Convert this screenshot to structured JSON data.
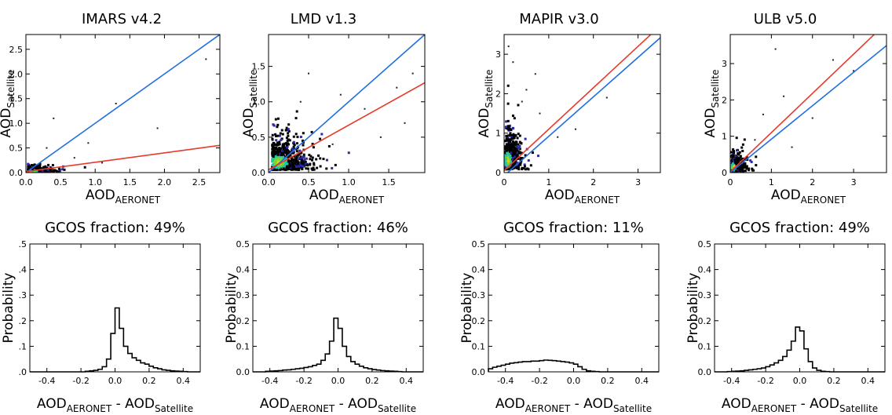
{
  "chart_data": [
    {
      "type": "scatter",
      "panel": "scatter-imars",
      "title": "IMARS v4.2",
      "xlabel_main": "AOD",
      "xlabel_sub": "AERONET",
      "ylabel_main": "AOD",
      "ylabel_sub": "Satellite",
      "xlim": [
        0,
        2.8
      ],
      "ylim": [
        0,
        2.8
      ],
      "xticks": [
        0.0,
        0.5,
        1.0,
        1.5,
        2.0,
        2.5
      ],
      "xtick_labels": [
        "0.0",
        "0.5",
        "1.0",
        "1.5",
        "2.0",
        "2.5"
      ],
      "yticks": [
        0.0,
        0.5,
        1.0,
        1.5,
        2.0,
        2.5
      ],
      "ytick_labels": [
        "0.0",
        "0.5",
        "1.0",
        "1.5",
        "2.0",
        "2.5"
      ],
      "lines": [
        {
          "color": "#1f6fe0",
          "slope": 1.0,
          "intercept": 0.0
        },
        {
          "color": "#e8392a",
          "slope": 0.19,
          "intercept": 0.02
        }
      ],
      "cloud": {
        "cx": 0.15,
        "cy": 0.05,
        "sx": 0.12,
        "sy": 0.05,
        "n": 320
      },
      "outliers": [
        [
          0.4,
          1.1
        ],
        [
          0.9,
          0.6
        ],
        [
          1.3,
          1.4
        ],
        [
          0.7,
          0.3
        ],
        [
          1.9,
          0.9
        ],
        [
          0.3,
          0.5
        ],
        [
          1.1,
          0.2
        ],
        [
          2.6,
          2.3
        ]
      ]
    },
    {
      "type": "scatter",
      "panel": "scatter-lmd",
      "title": "LMD v1.3",
      "xlabel_main": "AOD",
      "xlabel_sub": "AERONET",
      "ylabel_main": "AOD",
      "ylabel_sub": "Satellite",
      "xlim": [
        0,
        1.95
      ],
      "ylim": [
        0,
        1.95
      ],
      "xticks": [
        0.0,
        0.5,
        1.0,
        1.5
      ],
      "xtick_labels": [
        "0.0",
        "0.5",
        "1.0",
        "1.5"
      ],
      "yticks": [
        0.0,
        0.5,
        1.0,
        1.5
      ],
      "ytick_labels": [
        "0.0",
        "0.5",
        "1.0",
        "1.5"
      ],
      "lines": [
        {
          "color": "#1f6fe0",
          "slope": 1.0,
          "intercept": 0.0
        },
        {
          "color": "#e8392a",
          "slope": 0.63,
          "intercept": 0.04
        }
      ],
      "cloud": {
        "cx": 0.22,
        "cy": 0.25,
        "sx": 0.18,
        "sy": 0.16,
        "n": 700
      },
      "outliers": [
        [
          0.5,
          1.4
        ],
        [
          0.9,
          1.1
        ],
        [
          1.2,
          0.9
        ],
        [
          1.6,
          1.2
        ],
        [
          1.8,
          1.4
        ],
        [
          0.8,
          0.4
        ],
        [
          1.4,
          0.5
        ],
        [
          0.4,
          1.0
        ],
        [
          1.7,
          0.7
        ]
      ]
    },
    {
      "type": "scatter",
      "panel": "scatter-mapir",
      "title": "MAPIR v3.0",
      "xlabel_main": "AOD",
      "xlabel_sub": "AERONET",
      "ylabel_main": "AOD",
      "ylabel_sub": "Satellite",
      "xlim": [
        0,
        3.5
      ],
      "ylim": [
        0,
        3.5
      ],
      "xticks": [
        0,
        1,
        2,
        3
      ],
      "xtick_labels": [
        "0",
        "1",
        "2",
        "3"
      ],
      "yticks": [
        0,
        1,
        2,
        3
      ],
      "ytick_labels": [
        "0",
        "1",
        "2",
        "3"
      ],
      "lines": [
        {
          "color": "#e8392a",
          "slope": 1.05,
          "intercept": 0.05
        },
        {
          "color": "#1f6fe0",
          "slope": 1.0,
          "intercept": -0.08
        }
      ],
      "cloud": {
        "cx": 0.15,
        "cy": 0.55,
        "sx": 0.12,
        "sy": 0.35,
        "n": 650
      },
      "outliers": [
        [
          0.1,
          3.2
        ],
        [
          0.2,
          2.8
        ],
        [
          0.5,
          2.1
        ],
        [
          0.8,
          1.5
        ],
        [
          1.2,
          0.9
        ],
        [
          0.4,
          1.8
        ],
        [
          1.6,
          1.1
        ],
        [
          2.3,
          1.9
        ],
        [
          0.7,
          2.5
        ]
      ]
    },
    {
      "type": "scatter",
      "panel": "scatter-ulb",
      "title": "ULB v5.0",
      "xlabel_main": "AOD",
      "xlabel_sub": "AERONET",
      "ylabel_main": "AOD",
      "ylabel_sub": "Satellite",
      "xlim": [
        0,
        3.8
      ],
      "ylim": [
        0,
        3.8
      ],
      "xticks": [
        0,
        1,
        2,
        3
      ],
      "xtick_labels": [
        "0",
        "1",
        "2",
        "3"
      ],
      "yticks": [
        0,
        1,
        2,
        3
      ],
      "ytick_labels": [
        "0",
        "1",
        "2",
        "3"
      ],
      "lines": [
        {
          "color": "#e8392a",
          "slope": 1.08,
          "intercept": 0.02
        },
        {
          "color": "#1f6fe0",
          "slope": 0.92,
          "intercept": 0.0
        }
      ],
      "cloud": {
        "cx": 0.15,
        "cy": 0.25,
        "sx": 0.12,
        "sy": 0.18,
        "n": 450
      },
      "outliers": [
        [
          1.1,
          3.4
        ],
        [
          0.8,
          1.6
        ],
        [
          1.3,
          2.1
        ],
        [
          2.0,
          1.5
        ],
        [
          0.6,
          0.9
        ],
        [
          1.5,
          0.7
        ],
        [
          3.0,
          2.8
        ],
        [
          2.5,
          3.1
        ]
      ]
    },
    {
      "type": "bar",
      "panel": "hist-imars",
      "title": "GCOS fraction: 49%",
      "xlabel_main": "AOD",
      "xlabel_sub1": "AERONET",
      "xlabel_sep": " - AOD",
      "xlabel_sub2": "Satellite",
      "ylabel": "Probability",
      "xlim": [
        -0.5,
        0.5
      ],
      "ylim": [
        0,
        0.5
      ],
      "xticks": [
        -0.4,
        -0.2,
        0.0,
        0.2,
        0.4
      ],
      "xtick_labels": [
        "-0.4",
        "-0.2",
        "0.0",
        "0.2",
        "0.4"
      ],
      "yticks": [
        0.0,
        0.1,
        0.2,
        0.3,
        0.4,
        0.5
      ],
      "ytick_labels": [
        ".0",
        ".1",
        ".2",
        ".3",
        ".4",
        ".5"
      ],
      "bin_start": -0.5,
      "bin_width": 0.025,
      "values": [
        0,
        0,
        0,
        0,
        0,
        0,
        0,
        0,
        0,
        0,
        0,
        0,
        0,
        0.002,
        0.004,
        0.006,
        0.01,
        0.02,
        0.05,
        0.15,
        0.25,
        0.17,
        0.1,
        0.072,
        0.055,
        0.045,
        0.035,
        0.03,
        0.022,
        0.016,
        0.012,
        0.008,
        0.006,
        0.004,
        0.003,
        0.002,
        0.001,
        0,
        0,
        0
      ]
    },
    {
      "type": "bar",
      "panel": "hist-lmd",
      "title": "GCOS fraction: 46%",
      "xlabel_main": "AOD",
      "xlabel_sub1": "AERONET",
      "xlabel_sep": " - AOD",
      "xlabel_sub2": "Satellite",
      "ylabel": "Probability",
      "xlim": [
        -0.5,
        0.5
      ],
      "ylim": [
        0,
        0.5
      ],
      "xticks": [
        -0.4,
        -0.2,
        0.0,
        0.2,
        0.4
      ],
      "xtick_labels": [
        "-0.4",
        "-0.2",
        "0.0",
        "0.2",
        "0.4"
      ],
      "yticks": [
        0.0,
        0.1,
        0.2,
        0.3,
        0.4,
        0.5
      ],
      "ytick_labels": [
        "0.0",
        "0.1",
        "0.2",
        "0.3",
        "0.4",
        "0.5"
      ],
      "bin_start": -0.5,
      "bin_width": 0.025,
      "values": [
        0,
        0,
        0,
        0.002,
        0.003,
        0.004,
        0.005,
        0.007,
        0.008,
        0.01,
        0.012,
        0.014,
        0.017,
        0.02,
        0.025,
        0.03,
        0.045,
        0.07,
        0.12,
        0.21,
        0.17,
        0.1,
        0.06,
        0.04,
        0.03,
        0.022,
        0.016,
        0.012,
        0.009,
        0.007,
        0.005,
        0.004,
        0.003,
        0.002,
        0.001,
        0,
        0,
        0,
        0,
        0
      ]
    },
    {
      "type": "bar",
      "panel": "hist-mapir",
      "title": "GCOS fraction: 11%",
      "xlabel_main": "AOD",
      "xlabel_sub1": "AERONET",
      "xlabel_sep": " - AOD",
      "xlabel_sub2": "Satellite",
      "ylabel": "Probability",
      "xlim": [
        -0.5,
        0.5
      ],
      "ylim": [
        0,
        0.5
      ],
      "xticks": [
        -0.4,
        -0.2,
        0.0,
        0.2,
        0.4
      ],
      "xtick_labels": [
        "-0.4",
        "-0.2",
        "0.0",
        "0.2",
        "0.4"
      ],
      "yticks": [
        0.0,
        0.1,
        0.2,
        0.3,
        0.4,
        0.5
      ],
      "ytick_labels": [
        "0.0",
        "0.1",
        "0.2",
        "0.3",
        "0.4",
        "0.5"
      ],
      "bin_start": -0.5,
      "bin_width": 0.025,
      "values": [
        0.012,
        0.018,
        0.022,
        0.026,
        0.03,
        0.034,
        0.036,
        0.038,
        0.04,
        0.04,
        0.042,
        0.042,
        0.044,
        0.046,
        0.045,
        0.044,
        0.042,
        0.04,
        0.038,
        0.035,
        0.03,
        0.02,
        0.01,
        0.004,
        0.002,
        0.001,
        0,
        0,
        0,
        0,
        0,
        0,
        0,
        0,
        0,
        0,
        0,
        0,
        0,
        0
      ]
    },
    {
      "type": "bar",
      "panel": "hist-ulb",
      "title": "GCOS fraction: 49%",
      "xlabel_main": "AOD",
      "xlabel_sub1": "AERONET",
      "xlabel_sep": " - AOD",
      "xlabel_sub2": "Satellite",
      "ylabel": "Probability",
      "xlim": [
        -0.5,
        0.5
      ],
      "ylim": [
        0,
        0.5
      ],
      "xticks": [
        -0.4,
        -0.2,
        0.0,
        0.2,
        0.4
      ],
      "xtick_labels": [
        "-0.4",
        "-0.2",
        "0.0",
        "0.2",
        "0.4"
      ],
      "yticks": [
        0.0,
        0.1,
        0.2,
        0.3,
        0.4,
        0.5
      ],
      "ytick_labels": [
        "0.0",
        "0.1",
        "0.2",
        "0.3",
        "0.4",
        "0.5"
      ],
      "bin_start": -0.5,
      "bin_width": 0.025,
      "values": [
        0,
        0,
        0,
        0.001,
        0.002,
        0.003,
        0.004,
        0.006,
        0.008,
        0.01,
        0.012,
        0.015,
        0.02,
        0.027,
        0.035,
        0.045,
        0.06,
        0.085,
        0.12,
        0.175,
        0.16,
        0.09,
        0.04,
        0.015,
        0.006,
        0.002,
        0.001,
        0,
        0,
        0,
        0,
        0,
        0,
        0,
        0,
        0,
        0,
        0,
        0,
        0
      ]
    }
  ]
}
